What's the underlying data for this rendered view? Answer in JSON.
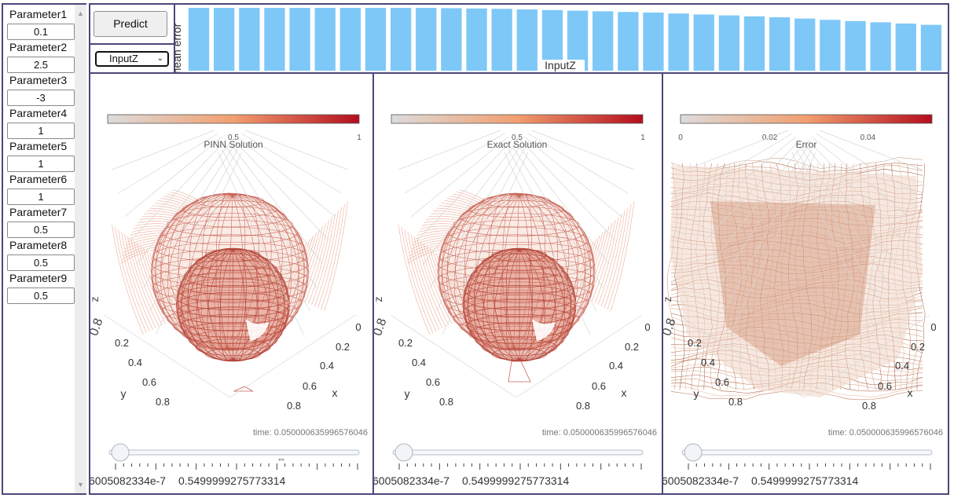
{
  "sidebar": {
    "parameters": [
      {
        "label": "Parameter1",
        "value": "0.1"
      },
      {
        "label": "Parameter2",
        "value": "2.5"
      },
      {
        "label": "Parameter3",
        "value": "-3"
      },
      {
        "label": "Parameter4",
        "value": "1"
      },
      {
        "label": "Parameter5",
        "value": "1"
      },
      {
        "label": "Parameter6",
        "value": "1"
      },
      {
        "label": "Parameter7",
        "value": "0.5"
      },
      {
        "label": "Parameter8",
        "value": "0.5"
      },
      {
        "label": "Parameter9",
        "value": "0.5"
      }
    ]
  },
  "controls": {
    "predict_label": "Predict",
    "selected_input": "InputZ"
  },
  "chart_data": {
    "type": "bar",
    "title": "",
    "xlabel": "InputZ",
    "ylabel": "mean error",
    "values": [
      1.0,
      1.0,
      1.0,
      1.0,
      1.0,
      1.0,
      1.0,
      1.0,
      1.0,
      1.0,
      0.995,
      0.99,
      0.985,
      0.975,
      0.965,
      0.955,
      0.945,
      0.935,
      0.925,
      0.91,
      0.895,
      0.88,
      0.865,
      0.85,
      0.83,
      0.81,
      0.79,
      0.77,
      0.75,
      0.73
    ],
    "bar_color": "#7ec8f8"
  },
  "panels": [
    {
      "title": "PINN Solution",
      "colorbar_ticks": [
        "0.5",
        "1"
      ],
      "time_label": "time: 0.050000635996576046",
      "slider_labels": [
        "6005082334e-7",
        "0.5499999275773314"
      ],
      "y_ticks": [
        "0.2",
        "0.4",
        "0.6",
        "0.8"
      ],
      "x_ticks": [
        "0",
        "0.2",
        "0.4",
        "0.6",
        "0.8"
      ],
      "x_axis": "x",
      "y_axis": "y",
      "z_axis": "z",
      "slider_value": 0.0
    },
    {
      "title": "Exact Solution",
      "colorbar_ticks": [
        "0.5",
        "1"
      ],
      "time_label": "time: 0.050000635996576046",
      "slider_labels": [
        "6005082334e-7",
        "0.5499999275773314"
      ],
      "y_ticks": [
        "0.2",
        "0.4",
        "0.6",
        "0.8"
      ],
      "x_ticks": [
        "0",
        "0.2",
        "0.4",
        "0.6",
        "0.8"
      ],
      "x_axis": "x",
      "y_axis": "y",
      "z_axis": "z",
      "slider_value": 0.0
    },
    {
      "title": "Error",
      "colorbar_ticks": [
        "0",
        "0.02",
        "0.04"
      ],
      "time_label": "time: 0.050000635996576046",
      "slider_labels": [
        "6005082334e-7",
        "0.5499999275773314"
      ],
      "y_ticks": [
        "0.2",
        "0.4",
        "0.6",
        "0.8"
      ],
      "x_ticks": [
        "0",
        "0.2",
        "0.4",
        "0.6",
        "0.8"
      ],
      "x_axis": "x",
      "y_axis": "y",
      "z_axis": "z",
      "slider_value": 0.0
    }
  ],
  "colors": {
    "frame": "#4b4878",
    "mesh_dark": "#b3473a",
    "mesh_light": "#e9a48c"
  }
}
